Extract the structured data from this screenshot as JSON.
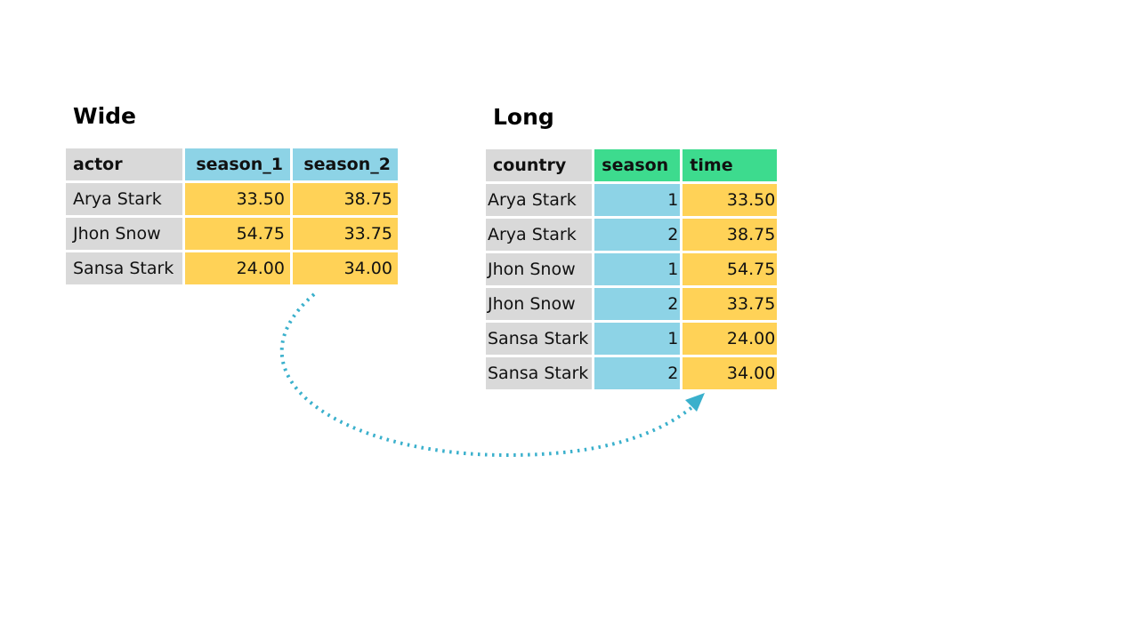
{
  "colors": {
    "label_gray": "#d9d9d9",
    "value_blue": "#8dd3e6",
    "value_yellow": "#ffd257",
    "header_green": "#3ddb8e",
    "arrow_teal": "#3ab0cc"
  },
  "wide": {
    "title": "Wide",
    "headers": [
      "actor",
      "season_1",
      "season_2"
    ],
    "rows": [
      [
        "Arya Stark",
        "33.50",
        "38.75"
      ],
      [
        "Jhon Snow",
        "54.75",
        "33.75"
      ],
      [
        "Sansa Stark",
        "24.00",
        "34.00"
      ]
    ]
  },
  "long": {
    "title": "Long",
    "headers": [
      "country",
      "season",
      "time"
    ],
    "rows": [
      [
        "Arya Stark",
        "1",
        "33.50"
      ],
      [
        "Arya Stark",
        "2",
        "38.75"
      ],
      [
        "Jhon Snow",
        "1",
        "54.75"
      ],
      [
        "Jhon Snow",
        "2",
        "33.75"
      ],
      [
        "Sansa Stark",
        "1",
        "24.00"
      ],
      [
        "Sansa Stark",
        "2",
        "34.00"
      ]
    ]
  },
  "arrow": {
    "style": "dotted",
    "direction": "wide-to-long"
  }
}
